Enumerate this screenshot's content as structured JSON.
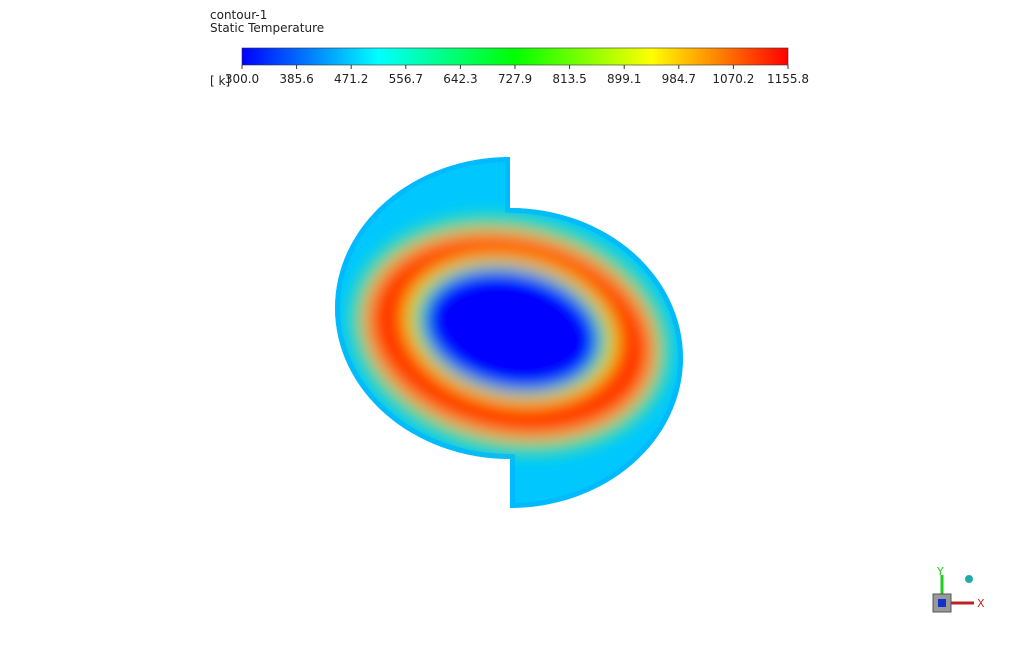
{
  "legend": {
    "title": "contour-1",
    "variable": "Static Temperature",
    "unit": "[ k]",
    "ticks": [
      "300.0",
      "385.6",
      "471.2",
      "556.7",
      "642.3",
      "727.9",
      "813.5",
      "899.1",
      "984.7",
      "1070.2",
      "1155.8"
    ]
  },
  "axes": {
    "x": "X",
    "y": "Y"
  }
}
